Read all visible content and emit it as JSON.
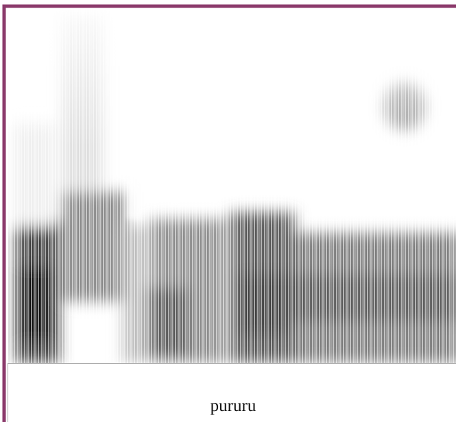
{
  "label": "pururu"
}
